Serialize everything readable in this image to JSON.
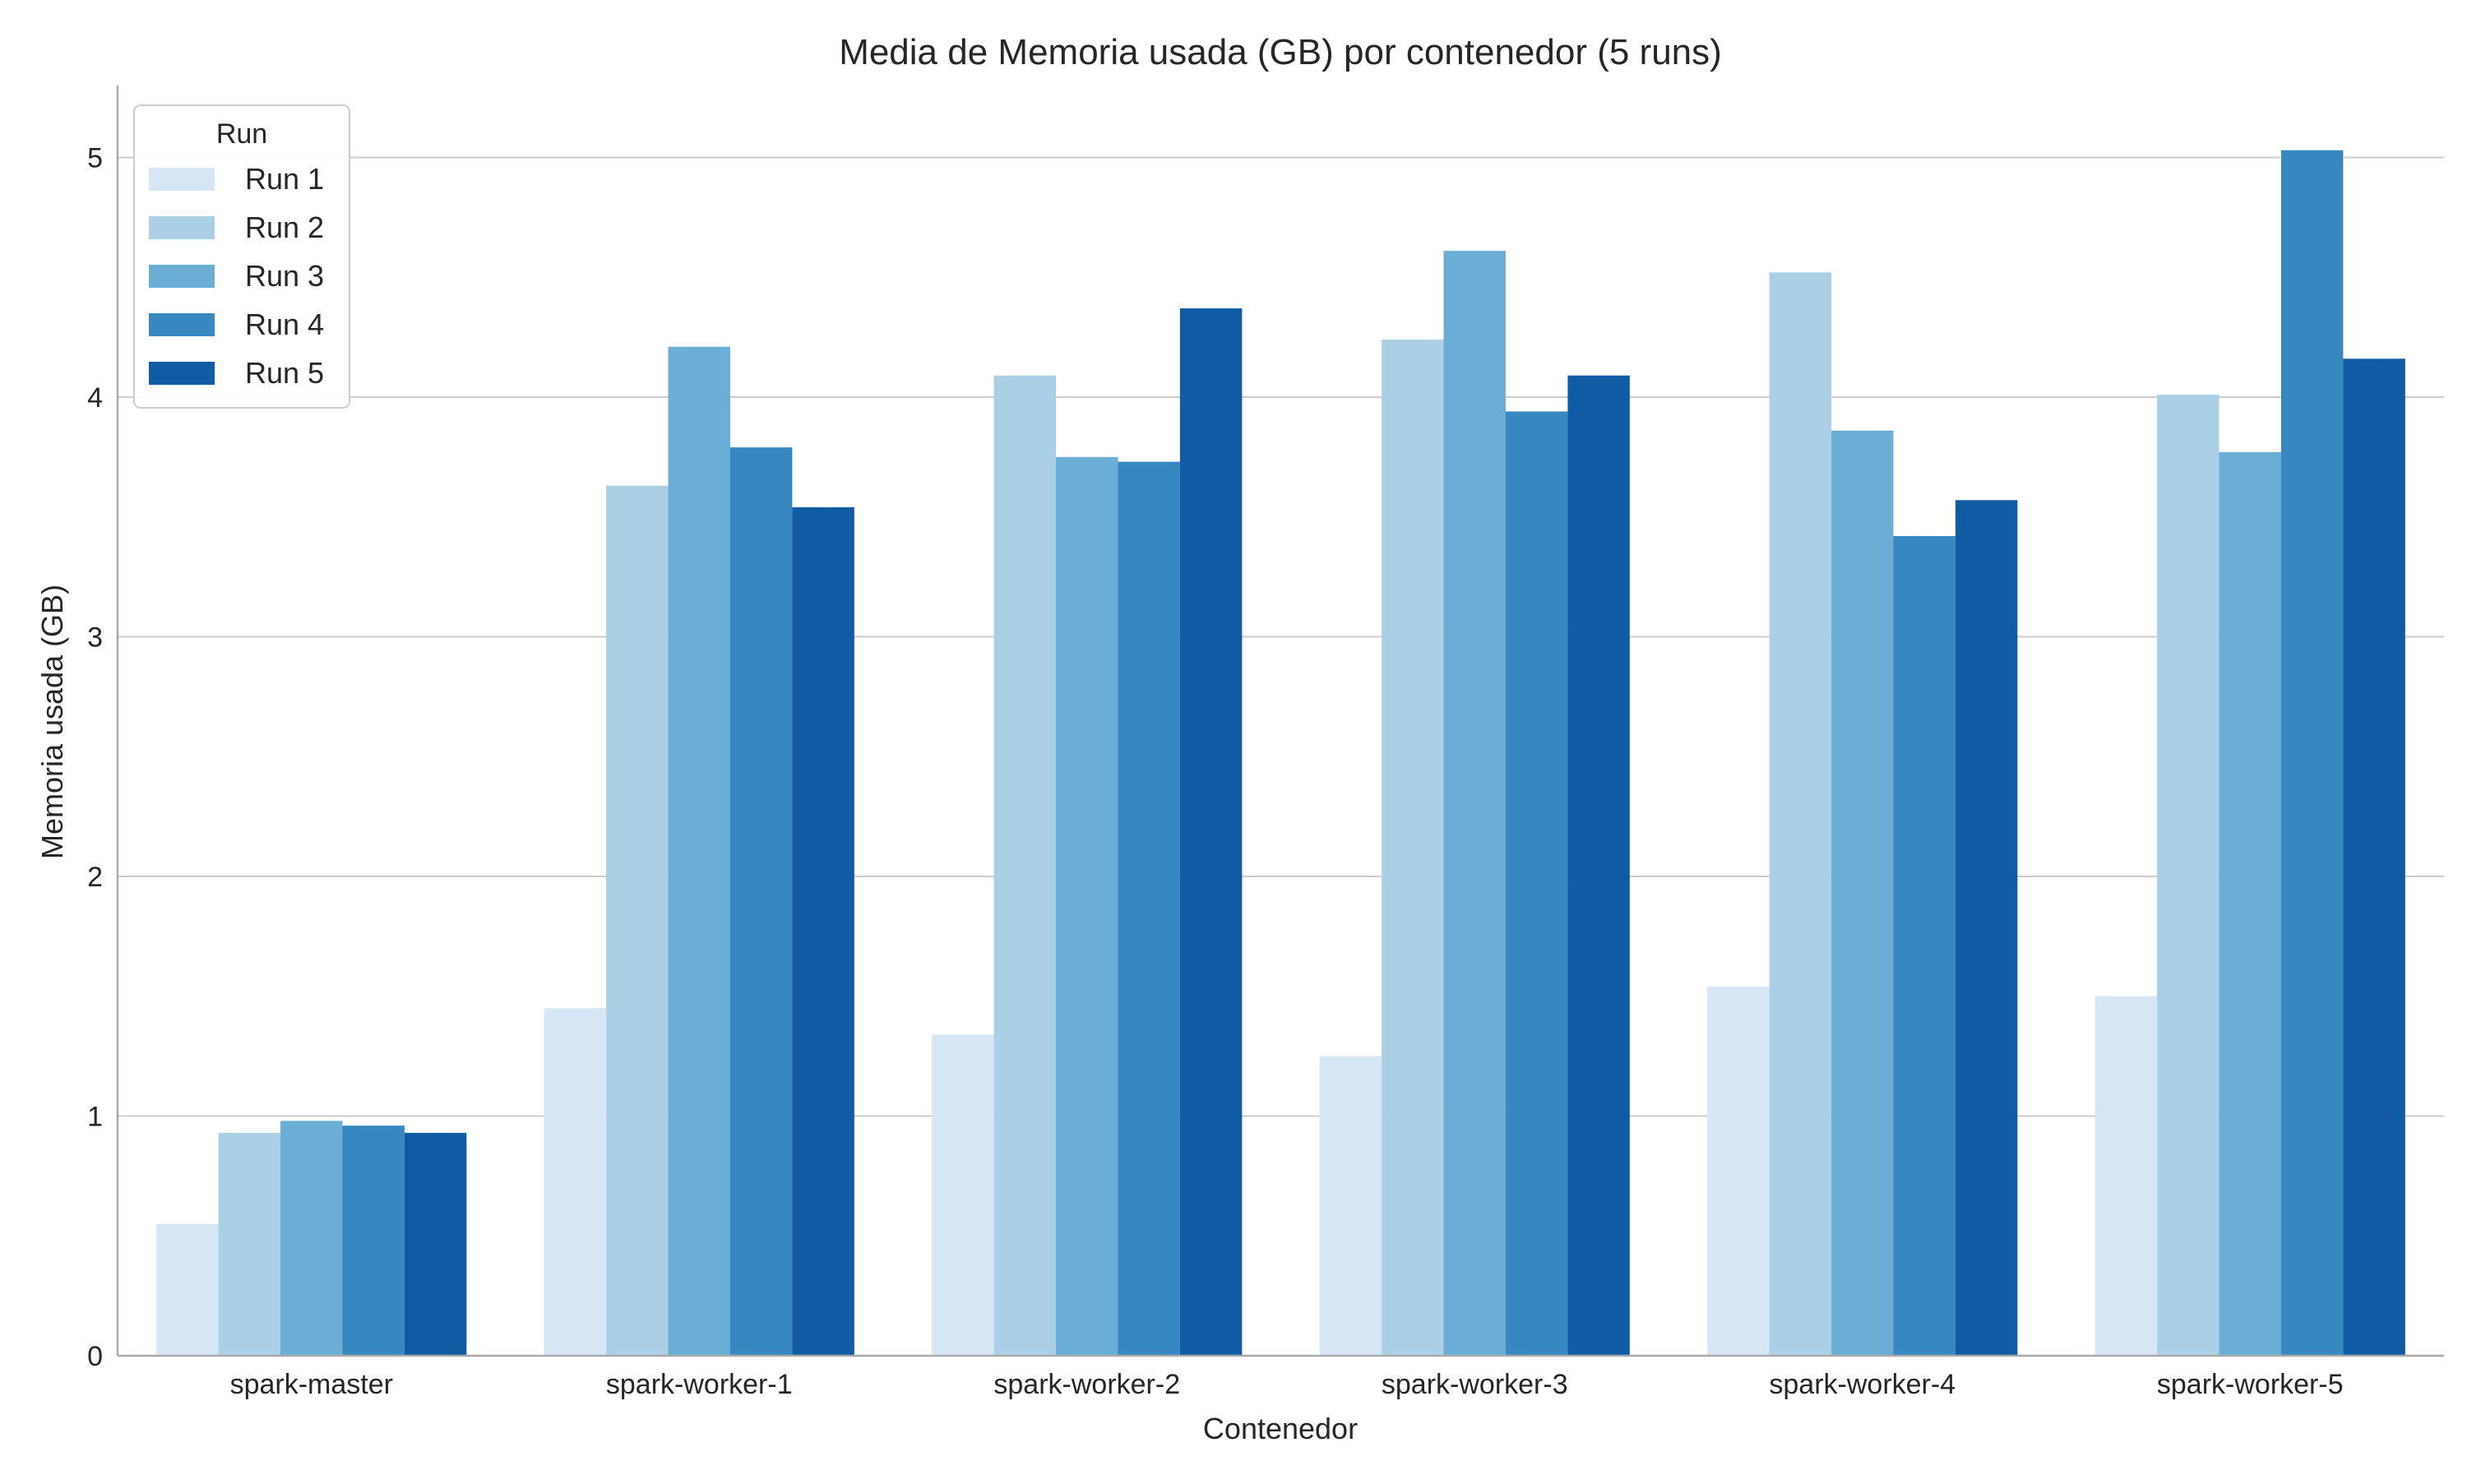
{
  "chart_data": {
    "type": "bar",
    "title": "Media de Memoria usada (GB) por contenedor (5 runs)",
    "xlabel": "Contenedor",
    "ylabel": "Memoria usada (GB)",
    "ylim": [
      0,
      5.3
    ],
    "yticks": [
      0,
      1,
      2,
      3,
      4,
      5
    ],
    "grid": "horizontal",
    "legend": {
      "title": "Run",
      "placement": "top-left"
    },
    "categories": [
      "spark-master",
      "spark-worker-1",
      "spark-worker-2",
      "spark-worker-3",
      "spark-worker-4",
      "spark-worker-5"
    ],
    "series": [
      {
        "name": "Run 1",
        "color": "#d6e6f4",
        "values": [
          0.55,
          1.45,
          1.34,
          1.25,
          1.54,
          1.5
        ]
      },
      {
        "name": "Run 2",
        "color": "#abd0e6",
        "values": [
          0.93,
          3.63,
          4.09,
          4.24,
          4.52,
          4.01
        ]
      },
      {
        "name": "Run 3",
        "color": "#6aaed6",
        "values": [
          0.98,
          4.21,
          3.75,
          4.61,
          3.86,
          3.77
        ]
      },
      {
        "name": "Run 4",
        "color": "#3787c0",
        "values": [
          0.96,
          3.79,
          3.73,
          3.94,
          3.42,
          5.03
        ]
      },
      {
        "name": "Run 5",
        "color": "#105ba4",
        "values": [
          0.93,
          3.54,
          4.37,
          4.09,
          3.57,
          4.16
        ]
      }
    ]
  }
}
